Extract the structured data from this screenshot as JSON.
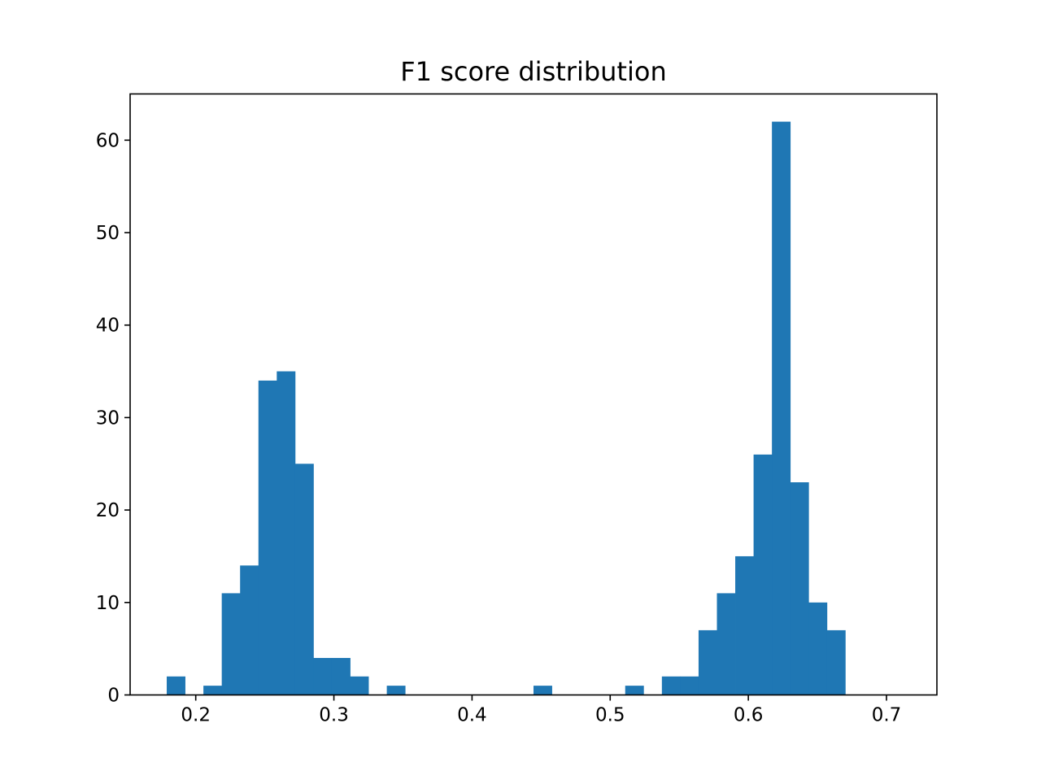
{
  "chart_data": {
    "type": "bar",
    "title": "F1 score distribution",
    "xlabel": "",
    "ylabel": "",
    "xlim": [
      0.1525,
      0.7365
    ],
    "ylim": [
      0,
      65
    ],
    "x_ticks": [
      0.2,
      0.3,
      0.4,
      0.5,
      0.6,
      0.7
    ],
    "x_tick_labels": [
      "0.2",
      "0.3",
      "0.4",
      "0.5",
      "0.6",
      "0.7"
    ],
    "y_ticks": [
      0,
      10,
      20,
      30,
      40,
      50,
      60
    ],
    "y_tick_labels": [
      "0",
      "10",
      "20",
      "30",
      "40",
      "50",
      "60"
    ],
    "grid": false,
    "legend": false,
    "bar_color": "#1f77b4",
    "bin_start": 0.179,
    "bin_width": 0.013275,
    "counts": [
      2,
      0,
      1,
      11,
      14,
      34,
      35,
      25,
      4,
      4,
      2,
      0,
      1,
      0,
      0,
      0,
      0,
      0,
      0,
      0,
      1,
      0,
      0,
      0,
      0,
      1,
      0,
      2,
      2,
      7,
      11,
      15,
      26,
      62,
      23,
      10,
      7
    ]
  }
}
